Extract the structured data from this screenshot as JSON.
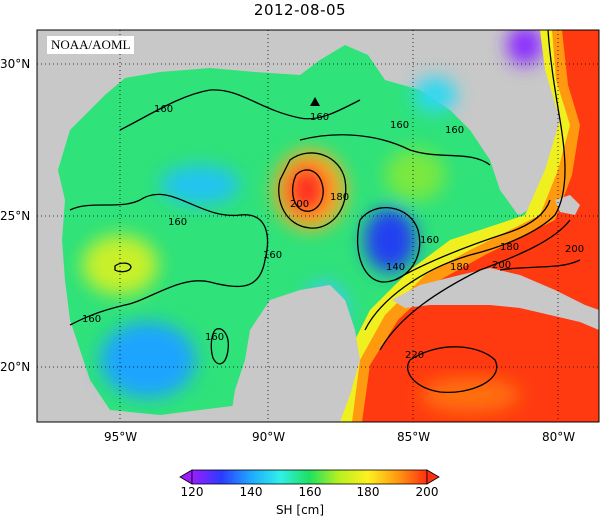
{
  "title": "2012-08-05",
  "source_label": "NOAA/AOML",
  "lat_labels": [
    "30°N",
    "25°N",
    "20°N"
  ],
  "lon_labels": [
    "95°W",
    "90°W",
    "85°W",
    "80°W"
  ],
  "contour_labels": [
    "160",
    "160",
    "160",
    "160",
    "160",
    "160",
    "180",
    "200",
    "180",
    "160",
    "160",
    "140",
    "180",
    "200",
    "160",
    "220",
    "200"
  ],
  "colorbar": {
    "title": "SH [cm]",
    "ticks": [
      "120",
      "140",
      "160",
      "180",
      "200"
    ],
    "colors": [
      "#9b1cff",
      "#2b3bff",
      "#1fa8ff",
      "#2ff0e8",
      "#1ee060",
      "#b8f020",
      "#fff020",
      "#ff9a10",
      "#ff3010"
    ]
  },
  "colors": {
    "land": "#c8c8c8",
    "marker": "#000000"
  }
}
